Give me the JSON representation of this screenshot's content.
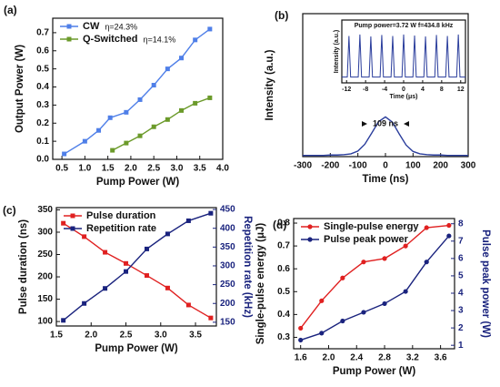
{
  "chart_data": [
    {
      "type": "line",
      "panel_label": "(a)",
      "x_label": "Pump Power (W)",
      "y_label": "Output Power (W)",
      "xlim": [
        0.3,
        4.0
      ],
      "ylim": [
        0,
        0.78
      ],
      "xticks": [
        0.5,
        {
          "value": 1,
          "label": "1.0"
        },
        1.5,
        {
          "value": 2,
          "label": "2.0"
        },
        2.5,
        {
          "value": 3,
          "label": "3.0"
        },
        3.5,
        {
          "value": 4,
          "label": "4.0"
        }
      ],
      "yticks": [
        {
          "value": 0,
          "label": "0.0"
        },
        0.1,
        0.2,
        0.3,
        0.4,
        0.5,
        0.6,
        0.7
      ],
      "legend": "upper left",
      "series": [
        {
          "name": "CW",
          "note": "η=24.3%",
          "color": "#4f7fe8",
          "marker": "square",
          "x": [
            0.55,
            1.0,
            1.3,
            1.55,
            1.9,
            2.2,
            2.5,
            2.8,
            3.1,
            3.4,
            3.72
          ],
          "values": [
            0.03,
            0.1,
            0.16,
            0.23,
            0.26,
            0.33,
            0.41,
            0.5,
            0.56,
            0.66,
            0.72
          ]
        },
        {
          "name": "Q-Switched",
          "note": "η=14.1%",
          "color": "#6b9a2a",
          "marker": "square",
          "x": [
            1.6,
            1.9,
            2.2,
            2.5,
            2.8,
            3.1,
            3.4,
            3.72
          ],
          "values": [
            0.05,
            0.09,
            0.13,
            0.18,
            0.22,
            0.27,
            0.31,
            0.34
          ]
        }
      ]
    },
    {
      "type": "line",
      "panel_label": "(b)",
      "x_label": "Time (ns)",
      "y_label": "Intensity (a.u.)",
      "xlim": [
        -300,
        300
      ],
      "ylim": [
        0,
        3.6
      ],
      "xticks": [
        -300,
        -200,
        -100,
        0,
        100,
        200,
        300
      ],
      "annotation": "109 ns",
      "series": [
        {
          "color": "#2a3d9c",
          "marker": "none",
          "x": [
            -300,
            -275,
            -250,
            -225,
            -200,
            -175,
            -150,
            -125,
            -100,
            -75,
            -50,
            -25,
            0,
            25,
            50,
            75,
            100,
            125,
            150,
            175,
            200,
            225,
            250,
            275,
            300
          ],
          "values": [
            0.03,
            0.03,
            0.03,
            0.03,
            0.04,
            0.04,
            0.05,
            0.07,
            0.14,
            0.31,
            0.59,
            0.88,
            1.0,
            0.87,
            0.57,
            0.29,
            0.13,
            0.07,
            0.05,
            0.04,
            0.04,
            0.03,
            0.03,
            0.03,
            0.03
          ]
        }
      ],
      "inset": {
        "type": "line",
        "title": "Pump power=3.72 W  f=434.8 kHz",
        "x_label": "Time (μs)",
        "y_label": "Intensity (a.u.)",
        "xlim": [
          -13,
          13
        ],
        "ylim": [
          0,
          1.3
        ],
        "xticks": [
          -12,
          -8,
          -4,
          0,
          4,
          8,
          12
        ],
        "series": [
          {
            "color": "#2a3d9c",
            "marker": "none",
            "x": [
              -13,
              -11.85,
              -11.5,
              -11.15,
              -9.55,
              -9.2,
              -8.85,
              -7.25,
              -6.9,
              -6.55,
              -4.95,
              -4.6,
              -4.25,
              -2.65,
              -2.3,
              -1.95,
              -0.35,
              0,
              0.35,
              1.95,
              2.3,
              2.65,
              4.25,
              4.6,
              4.95,
              6.55,
              6.9,
              7.25,
              8.85,
              9.2,
              9.55,
              11.15,
              11.5,
              11.85,
              13
            ],
            "values": [
              0.12,
              0.12,
              0.97,
              0.12,
              0.12,
              1.0,
              0.12,
              0.12,
              0.96,
              0.12,
              0.12,
              0.99,
              0.12,
              0.12,
              0.97,
              0.12,
              0.12,
              1.0,
              0.12,
              0.12,
              0.98,
              0.12,
              0.12,
              0.96,
              0.12,
              0.12,
              0.99,
              0.12,
              0.12,
              0.97,
              0.12,
              0.12,
              1.0,
              0.12,
              0.12
            ]
          }
        ]
      }
    },
    {
      "type": "line",
      "panel_label": "(c)",
      "x_label": "Pump Power (W)",
      "y_label": "Pulse duration (ns)",
      "y2_label": "Repetition rate (kHz)",
      "xlim": [
        1.5,
        3.8
      ],
      "ylim": [
        90,
        355
      ],
      "y2lim": [
        140,
        455
      ],
      "xticks": [
        1.5,
        {
          "value": 2,
          "label": "2.0"
        },
        2.5,
        {
          "value": 3,
          "label": "3.0"
        },
        3.5
      ],
      "yticks": [
        100,
        150,
        200,
        250,
        300,
        350
      ],
      "y2ticks": [
        150,
        200,
        250,
        300,
        350,
        400,
        450
      ],
      "legend": "upper left",
      "series": [
        {
          "name": "Pulse duration",
          "color": "#e02020",
          "marker": "square",
          "x": [
            1.6,
            1.9,
            2.2,
            2.5,
            2.8,
            3.1,
            3.4,
            3.72
          ],
          "values": [
            320,
            290,
            255,
            230,
            203,
            175,
            137,
            108
          ]
        },
        {
          "name": "Repetition rate",
          "color": "#1a237e",
          "marker": "square",
          "axis": "y2",
          "x": [
            1.6,
            1.9,
            2.2,
            2.5,
            2.8,
            3.1,
            3.4,
            3.72
          ],
          "values": [
            155,
            200,
            240,
            285,
            345,
            385,
            420,
            440
          ]
        }
      ]
    },
    {
      "type": "line",
      "panel_label": "(d)",
      "x_label": "Pump Power (W)",
      "y_label": "Single-pulse energy (μJ)",
      "y2_label": "Pulse peak power (W)",
      "xlim": [
        1.5,
        3.8
      ],
      "ylim": [
        0.25,
        0.82
      ],
      "y2lim": [
        0.8,
        8.3
      ],
      "xticks": [
        1.6,
        {
          "value": 2,
          "label": "2.0"
        },
        2.4,
        2.8,
        3.2,
        3.6
      ],
      "yticks": [
        0.3,
        0.4,
        0.5,
        0.6,
        0.7,
        0.8
      ],
      "y2ticks": [
        1,
        2,
        3,
        4,
        5,
        6,
        7,
        8
      ],
      "legend": "upper left",
      "series": [
        {
          "name": "Single-pulse energy",
          "color": "#e02020",
          "marker": "circle",
          "x": [
            1.6,
            1.9,
            2.2,
            2.5,
            2.8,
            3.1,
            3.4,
            3.72
          ],
          "values": [
            0.34,
            0.46,
            0.56,
            0.63,
            0.645,
            0.7,
            0.78,
            0.79
          ]
        },
        {
          "name": "Pulse peak power",
          "color": "#1a237e",
          "marker": "circle",
          "axis": "y2",
          "x": [
            1.6,
            1.9,
            2.2,
            2.5,
            2.8,
            3.1,
            3.4,
            3.72
          ],
          "values": [
            1.3,
            1.7,
            2.4,
            2.9,
            3.4,
            4.1,
            5.8,
            7.3
          ]
        }
      ]
    }
  ]
}
